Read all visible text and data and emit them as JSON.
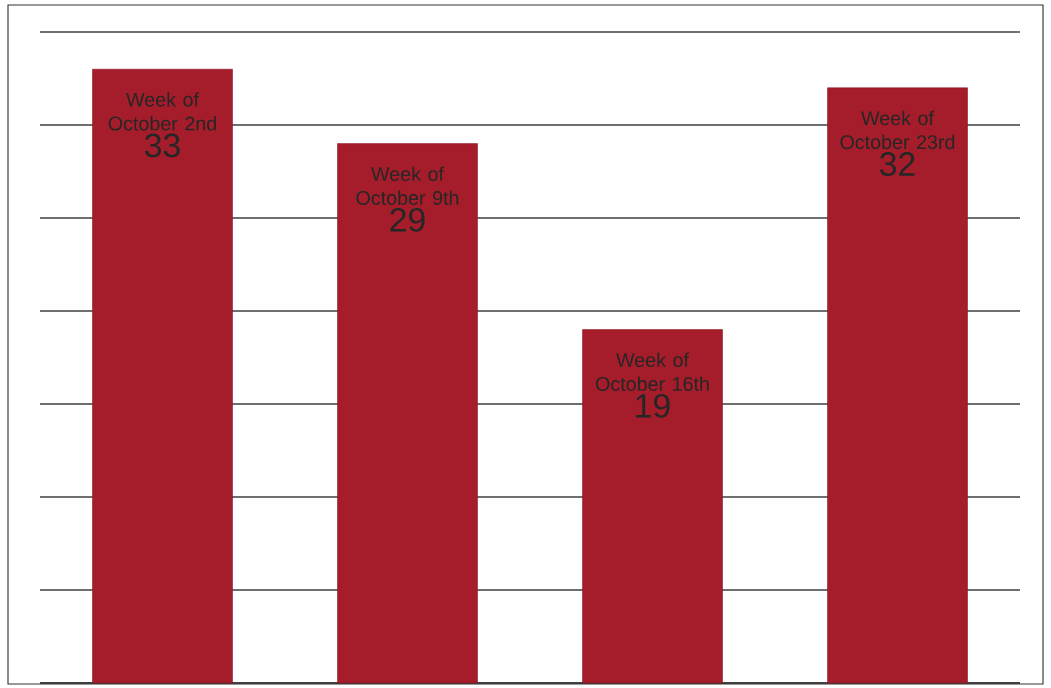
{
  "chart_data": {
    "type": "bar",
    "categories": [
      "Week of October 2nd",
      "Week of October 9th",
      "Week of October 16th",
      "Week of October 23rd"
    ],
    "values": [
      33,
      29,
      19,
      32
    ],
    "color": "#a51c2a",
    "ylim": [
      0,
      35
    ],
    "yticks": [
      {
        "value": 0,
        "label": null
      },
      {
        "value": 5,
        "label": null
      },
      {
        "value": 10,
        "label": null
      },
      {
        "value": 15,
        "label": null
      },
      {
        "value": 20,
        "label": null
      },
      {
        "value": 25,
        "label": null
      },
      {
        "value": 30,
        "label": null
      },
      {
        "value": 35,
        "label": null
      }
    ],
    "grid": "y",
    "data_labels": true
  }
}
